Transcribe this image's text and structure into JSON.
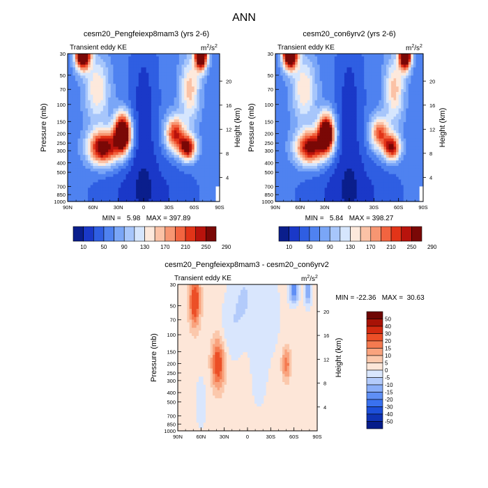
{
  "page_title": "ANN",
  "colors": {
    "abs_scale": [
      "#0a1e8c",
      "#1a38c8",
      "#2f5ee2",
      "#4f82f0",
      "#7aa6f7",
      "#a7c6fb",
      "#d6e6fd",
      "#fde9dc",
      "#fbc2a6",
      "#f79672",
      "#f26440",
      "#e23418",
      "#b8130c",
      "#7a0806"
    ],
    "diff_scale": [
      "#051c8a",
      "#0f33b4",
      "#1d4fd9",
      "#3a71ef",
      "#5f8ff5",
      "#8aaef8",
      "#b3cbfb",
      "#d9e6fd",
      "#fde6d8",
      "#fbc8ac",
      "#f9a37e",
      "#f47a50",
      "#ec4f27",
      "#d32a10",
      "#a81206",
      "#6e0603"
    ]
  },
  "chart_data": [
    {
      "id": "panel_a",
      "type": "contour",
      "title": "cesm20_Pengfeiexp8mam3 (yrs 2-6)",
      "left_label": "Transient eddy KE",
      "units_base": "m",
      "units_exp": "2",
      "units_mid": "/s",
      "units_exp2": "2",
      "ylabel": "Pressure (mb)",
      "ylabel_right": "Height (km)",
      "x_ticks": [
        "90N",
        "60N",
        "30N",
        "0",
        "30S",
        "60S",
        "90S"
      ],
      "y_ticks": [
        "30",
        "50",
        "70",
        "100",
        "150",
        "200",
        "250",
        "300",
        "400",
        "500",
        "700",
        "850",
        "1000"
      ],
      "height_ticks": [
        "20",
        "16",
        "12",
        "8",
        "4"
      ],
      "ylim_mb": [
        1000,
        30
      ],
      "min_label": "MIN = ",
      "min_value": "5.98",
      "max_label": "MAX = ",
      "max_value": "397.89",
      "min_max": "MIN =   5.98   MAX = 397.89",
      "colorbar_labels": [
        "10",
        "50",
        "90",
        "130",
        "170",
        "210",
        "250",
        "290"
      ],
      "colorbar_levels": [
        10,
        30,
        50,
        70,
        90,
        110,
        130,
        150,
        170,
        190,
        210,
        230,
        250,
        270,
        290
      ],
      "field": {
        "background": 60,
        "blobs": [
          {
            "lat": 25,
            "p": 200,
            "amp": 300,
            "wl": 7,
            "wp": 0.09
          },
          {
            "lat": 48,
            "p": 280,
            "amp": 230,
            "wl": 12,
            "wp": 0.08
          },
          {
            "lat": -37,
            "p": 200,
            "amp": 170,
            "wl": 8,
            "wp": 0.08
          },
          {
            "lat": -52,
            "p": 280,
            "amp": 210,
            "wl": 7,
            "wp": 0.06
          },
          {
            "lat": 72,
            "p": 30,
            "amp": 320,
            "wl": 6,
            "wp": 0.07
          },
          {
            "lat": -68,
            "p": 30,
            "amp": 330,
            "wl": 5,
            "wp": 0.07
          },
          {
            "lat": 55,
            "p": 70,
            "amp": 90,
            "wl": 10,
            "wp": 0.15
          },
          {
            "lat": -55,
            "p": 70,
            "amp": 100,
            "wl": 8,
            "wp": 0.15
          },
          {
            "lat": 0,
            "p": 120,
            "amp": -40,
            "wl": 12,
            "wp": 0.4
          },
          {
            "lat": 0,
            "p": 900,
            "amp": -40,
            "wl": 40,
            "wp": 0.2
          }
        ]
      }
    },
    {
      "id": "panel_b",
      "type": "contour",
      "title": "cesm20_con6yrv2 (yrs 2-6)",
      "left_label": "Transient eddy KE",
      "units_base": "m",
      "units_exp": "2",
      "units_mid": "/s",
      "units_exp2": "2",
      "ylabel": "Pressure (mb)",
      "ylabel_right": "Height (km)",
      "x_ticks": [
        "90N",
        "60N",
        "30N",
        "0",
        "30S",
        "60S",
        "90S"
      ],
      "y_ticks": [
        "30",
        "50",
        "70",
        "100",
        "150",
        "200",
        "250",
        "300",
        "400",
        "500",
        "700",
        "850",
        "1000"
      ],
      "height_ticks": [
        "20",
        "16",
        "12",
        "8",
        "4"
      ],
      "ylim_mb": [
        1000,
        30
      ],
      "min_label": "MIN = ",
      "min_value": "5.84",
      "max_label": "MAX = ",
      "max_value": "398.27",
      "min_max": "MIN =   5.84   MAX = 398.27",
      "colorbar_labels": [
        "10",
        "50",
        "90",
        "130",
        "170",
        "210",
        "250",
        "290"
      ],
      "colorbar_levels": [
        10,
        30,
        50,
        70,
        90,
        110,
        130,
        150,
        170,
        190,
        210,
        230,
        250,
        270,
        290
      ],
      "field": {
        "background": 60,
        "blobs": [
          {
            "lat": 28,
            "p": 200,
            "amp": 280,
            "wl": 7,
            "wp": 0.09
          },
          {
            "lat": 48,
            "p": 280,
            "amp": 210,
            "wl": 12,
            "wp": 0.08
          },
          {
            "lat": -37,
            "p": 200,
            "amp": 150,
            "wl": 8,
            "wp": 0.08
          },
          {
            "lat": -52,
            "p": 280,
            "amp": 190,
            "wl": 7,
            "wp": 0.06
          },
          {
            "lat": 72,
            "p": 30,
            "amp": 330,
            "wl": 6,
            "wp": 0.07
          },
          {
            "lat": -68,
            "p": 30,
            "amp": 340,
            "wl": 5,
            "wp": 0.07
          },
          {
            "lat": 55,
            "p": 70,
            "amp": 90,
            "wl": 10,
            "wp": 0.15
          },
          {
            "lat": -55,
            "p": 70,
            "amp": 100,
            "wl": 8,
            "wp": 0.15
          },
          {
            "lat": 0,
            "p": 120,
            "amp": -40,
            "wl": 12,
            "wp": 0.4
          },
          {
            "lat": 0,
            "p": 900,
            "amp": -40,
            "wl": 40,
            "wp": 0.2
          }
        ]
      }
    },
    {
      "id": "panel_diff",
      "type": "contour",
      "title": "cesm20_Pengfeiexp8mam3 - cesm20_con6yrv2",
      "left_label": "Transient eddy KE",
      "units_base": "m",
      "units_exp": "2",
      "units_mid": "/s",
      "units_exp2": "2",
      "ylabel": "Pressure (mb)",
      "ylabel_right": "Height (km)",
      "x_ticks": [
        "90N",
        "60N",
        "30N",
        "0",
        "30S",
        "60S",
        "90S"
      ],
      "y_ticks": [
        "30",
        "50",
        "70",
        "100",
        "150",
        "200",
        "250",
        "300",
        "400",
        "500",
        "700",
        "850",
        "1000"
      ],
      "height_ticks": [
        "20",
        "16",
        "12",
        "8",
        "4"
      ],
      "ylim_mb": [
        1000,
        30
      ],
      "min_label": "MIN = ",
      "min_value": "-22.36",
      "max_label": "MAX = ",
      "max_value": "30.63",
      "min_max": "MIN = -22.36   MAX =  30.63",
      "colorbar_labels": [
        "50",
        "40",
        "30",
        "20",
        "15",
        "10",
        "5",
        "0",
        "-5",
        "-10",
        "-15",
        "-20",
        "-30",
        "-40",
        "-50"
      ],
      "colorbar_levels": [
        -50,
        -40,
        -30,
        -20,
        -15,
        -10,
        -5,
        0,
        5,
        10,
        15,
        20,
        30,
        40,
        50
      ],
      "field": {
        "background": 2,
        "blobs": [
          {
            "lat": 68,
            "p": 45,
            "amp": 26,
            "wl": 5,
            "wp": 0.12
          },
          {
            "lat": 38,
            "p": 200,
            "amp": 24,
            "wl": 6,
            "wp": 0.12
          },
          {
            "lat": -50,
            "p": 200,
            "amp": 16,
            "wl": 4,
            "wp": 0.08
          },
          {
            "lat": 5,
            "p": 40,
            "amp": -7,
            "wl": 12,
            "wp": 0.2
          },
          {
            "lat": 22,
            "p": 90,
            "amp": -5,
            "wl": 10,
            "wp": 0.15
          },
          {
            "lat": -25,
            "p": 60,
            "amp": -6,
            "wl": 12,
            "wp": 0.2
          },
          {
            "lat": -60,
            "p": 35,
            "amp": -22,
            "wl": 4,
            "wp": 0.06
          },
          {
            "lat": -78,
            "p": 35,
            "amp": -18,
            "wl": 3,
            "wp": 0.07
          },
          {
            "lat": -15,
            "p": 250,
            "amp": -4,
            "wl": 8,
            "wp": 0.2
          },
          {
            "lat": 60,
            "p": 500,
            "amp": -3,
            "wl": 8,
            "wp": 0.2
          }
        ]
      }
    }
  ]
}
